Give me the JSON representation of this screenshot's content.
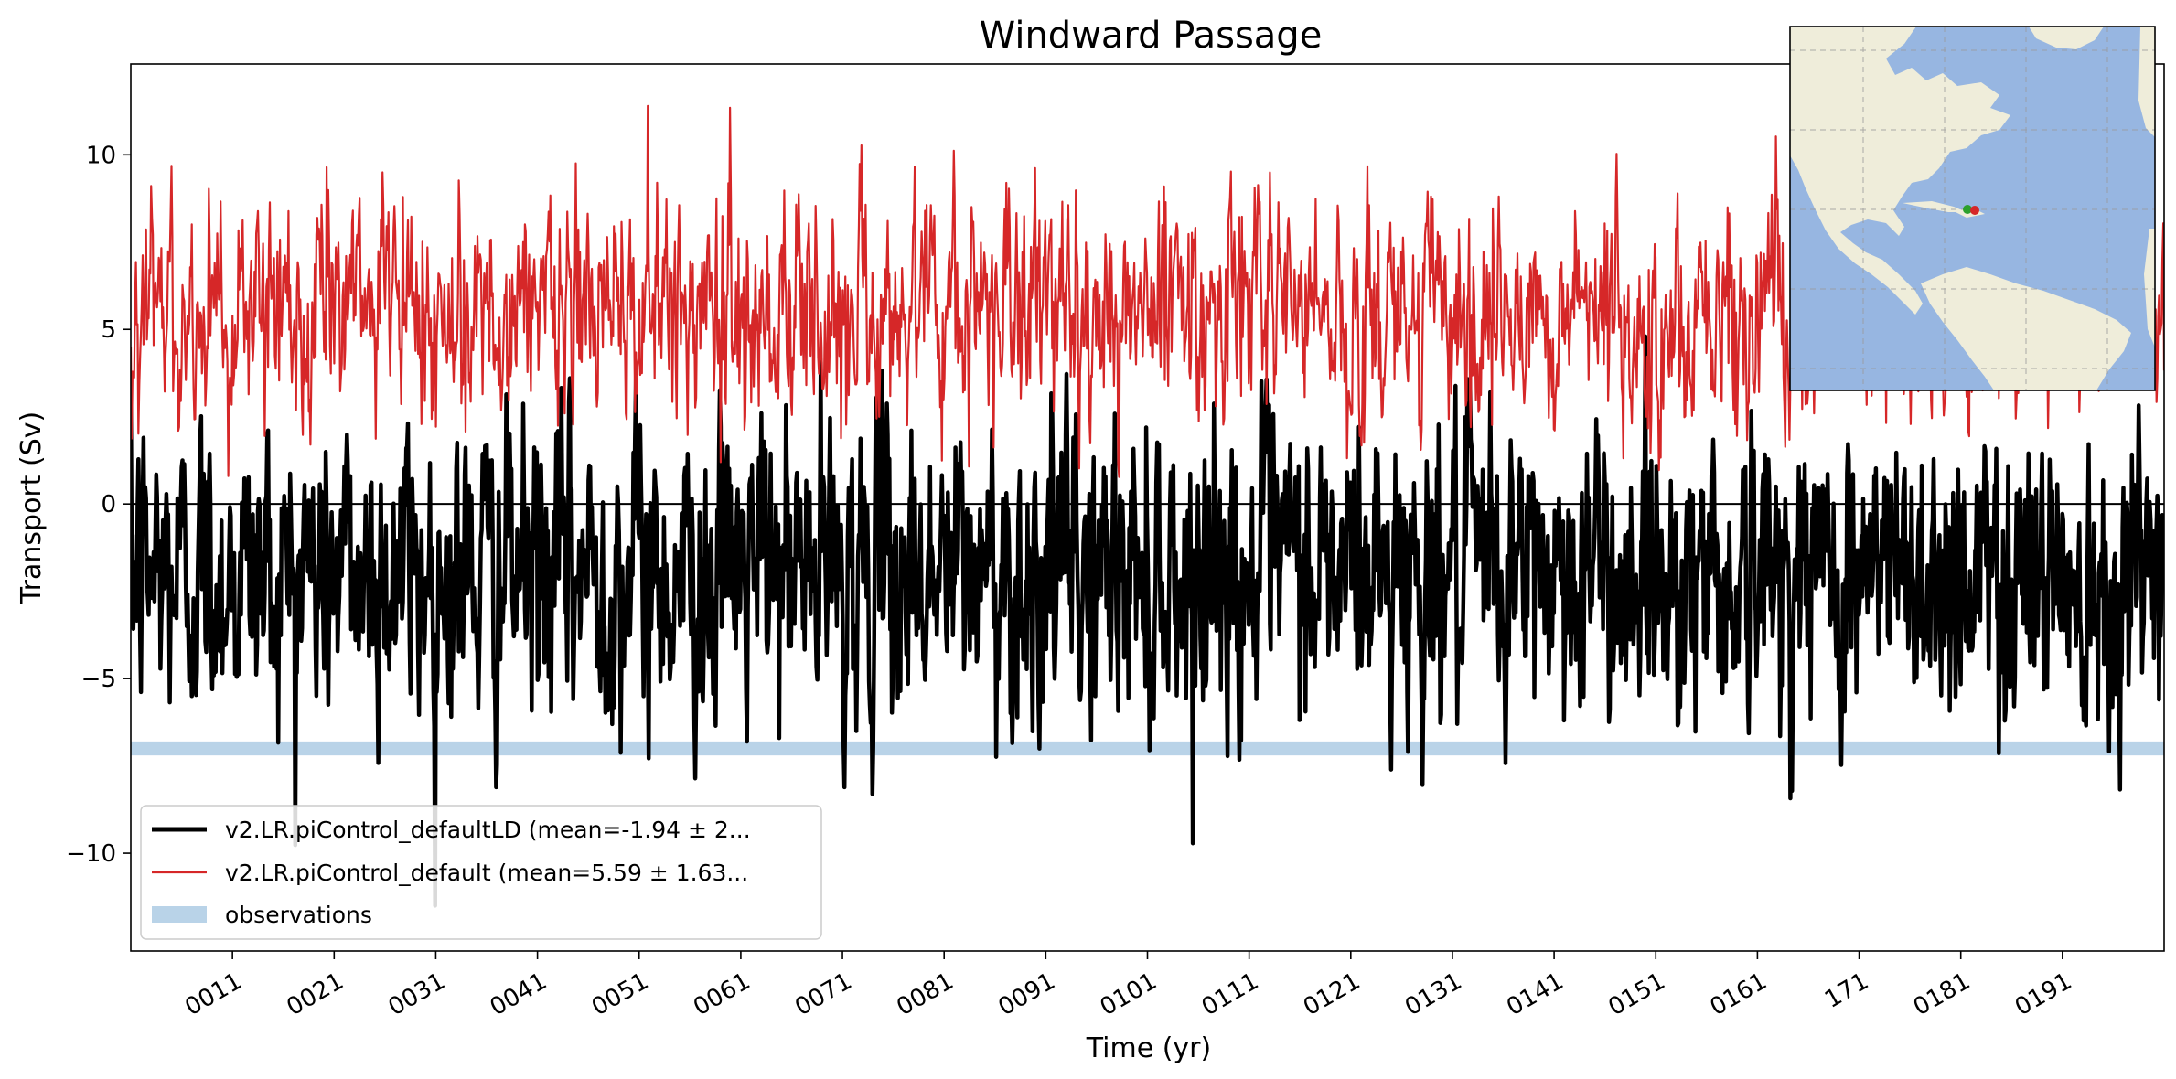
{
  "chart_data": {
    "type": "line",
    "title": "Windward Passage",
    "xlabel": "Time (yr)",
    "ylabel": "Transport (Sv)",
    "xlim": [
      1,
      201
    ],
    "ylim": [
      -12.8,
      12.6
    ],
    "x_ticks": [
      11,
      21,
      31,
      41,
      51,
      61,
      71,
      81,
      91,
      101,
      111,
      121,
      131,
      141,
      151,
      161,
      171,
      181,
      191
    ],
    "x_tick_labels": [
      "0011",
      "0021",
      "0031",
      "0041",
      "0051",
      "0061",
      "0071",
      "0081",
      "0091",
      "0101",
      "0111",
      "0121",
      "0131",
      "0141",
      "0151",
      "0161",
      "171",
      "0181",
      "0191"
    ],
    "y_ticks": [
      -10,
      -5,
      0,
      5,
      10
    ],
    "y_tick_labels": [
      "−10",
      "−5",
      "0",
      "5",
      "10"
    ],
    "zero_line": 0,
    "grid": false,
    "legend_position": "lower-left",
    "series": [
      {
        "name": "v2.LR.piControl_defaultLD (mean=-1.94 ± 2...",
        "color": "#000000",
        "style": "thick-line",
        "mean": -1.94,
        "amplitude": 2.1,
        "min": -11.5,
        "max": 4.8
      },
      {
        "name": "v2.LR.piControl_default (mean=5.59 ± 1.63...",
        "color": "#d62728",
        "style": "thin-line",
        "mean": 5.59,
        "amplitude": 1.63,
        "min": 0.3,
        "max": 11.4
      }
    ],
    "observations": {
      "name": "observations",
      "color": "#b9d3e8",
      "y_range": [
        -7.2,
        -6.8
      ]
    },
    "inset_map": {
      "region": "Atlantic (North and South America, Caribbean)",
      "land_color": "#efedda",
      "ocean_color": "#97b6e1",
      "marker_colors": [
        "#2ca02c",
        "#d62728"
      ]
    }
  }
}
